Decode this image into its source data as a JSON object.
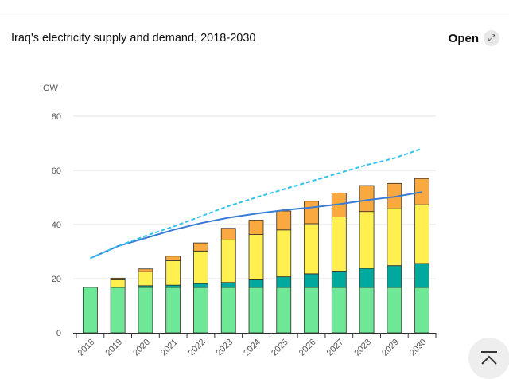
{
  "header": {
    "title": "Iraq's electricity supply and demand, 2018-2030",
    "open_label": "Open",
    "open_icon": "expand-icon"
  },
  "scroll_top": {
    "icon": "scroll-to-top-icon"
  },
  "chart_data": {
    "type": "bar",
    "title": "Iraq's electricity supply and demand, 2018-2030",
    "ylabel": "GW",
    "xlabel": "",
    "ylim": [
      0,
      80
    ],
    "yticks": [
      0,
      20,
      40,
      60,
      80
    ],
    "grid": true,
    "stacked": true,
    "categories": [
      "2018",
      "2019",
      "2020",
      "2021",
      "2022",
      "2023",
      "2024",
      "2025",
      "2026",
      "2027",
      "2028",
      "2029",
      "2030"
    ],
    "series": [
      {
        "color": "#6ee896",
        "values": [
          16.8,
          16.8,
          16.8,
          16.8,
          16.8,
          16.8,
          16.8,
          16.8,
          16.8,
          16.8,
          16.8,
          16.8,
          16.8
        ]
      },
      {
        "color": "#00a99d",
        "values": [
          0,
          0,
          0.6,
          0.8,
          1.4,
          1.8,
          2.8,
          3.9,
          5,
          6,
          7,
          8,
          8.8
        ]
      },
      {
        "color": "#fff04f",
        "values": [
          0,
          2.8,
          5.2,
          9,
          12,
          15.7,
          16.7,
          17.3,
          18.5,
          20,
          21,
          21,
          21.7
        ]
      },
      {
        "color": "#f9a93f",
        "values": [
          0,
          0.6,
          1,
          1.7,
          3,
          4.3,
          5.3,
          7,
          8.3,
          8.8,
          9.6,
          9.4,
          9.7
        ]
      }
    ],
    "lines": [
      {
        "color": "#3a7bd5",
        "style": "solid",
        "x_start": "2018",
        "values": [
          27.5,
          32,
          35,
          38,
          40.5,
          42.5,
          44,
          45.3,
          46.3,
          47.5,
          49,
          50.2,
          52
        ]
      },
      {
        "color": "#33c3ee",
        "style": "dashed",
        "x_start": "2018",
        "values": [
          27.5,
          32,
          35.8,
          39.2,
          43,
          46.8,
          50,
          53,
          56,
          59,
          62,
          64.5,
          68
        ]
      }
    ]
  }
}
